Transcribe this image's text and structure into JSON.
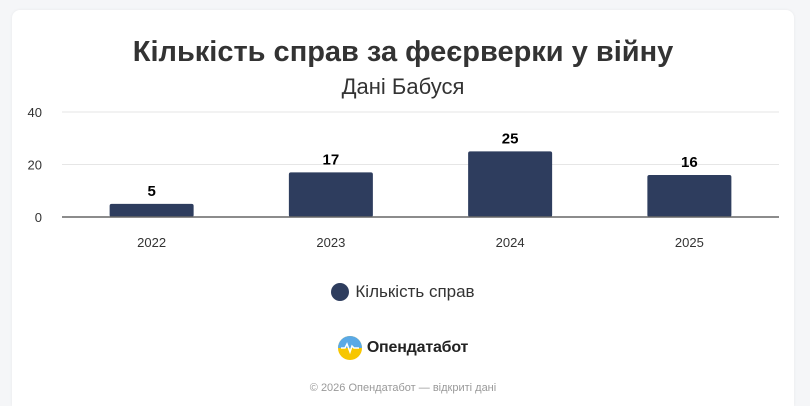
{
  "chart_data": {
    "type": "bar",
    "title": "Кількість справ за феєрверки у війну",
    "subtitle": "Дані Бабуся",
    "categories": [
      "2022",
      "2023",
      "2024",
      "2025"
    ],
    "series": [
      {
        "name": "Кількість справ",
        "values": [
          5,
          17,
          25,
          16
        ],
        "color": "#2e3d5e"
      }
    ],
    "ylim": [
      0,
      40
    ],
    "yticks": [
      0,
      20,
      40
    ],
    "grid": true,
    "legend": "bottom"
  },
  "brand": {
    "name": "Опендатабот",
    "logo_icon": "opendatabot-logo-icon"
  },
  "footer": {
    "text": "© 2026 Опендатабот — відкриті дані"
  }
}
